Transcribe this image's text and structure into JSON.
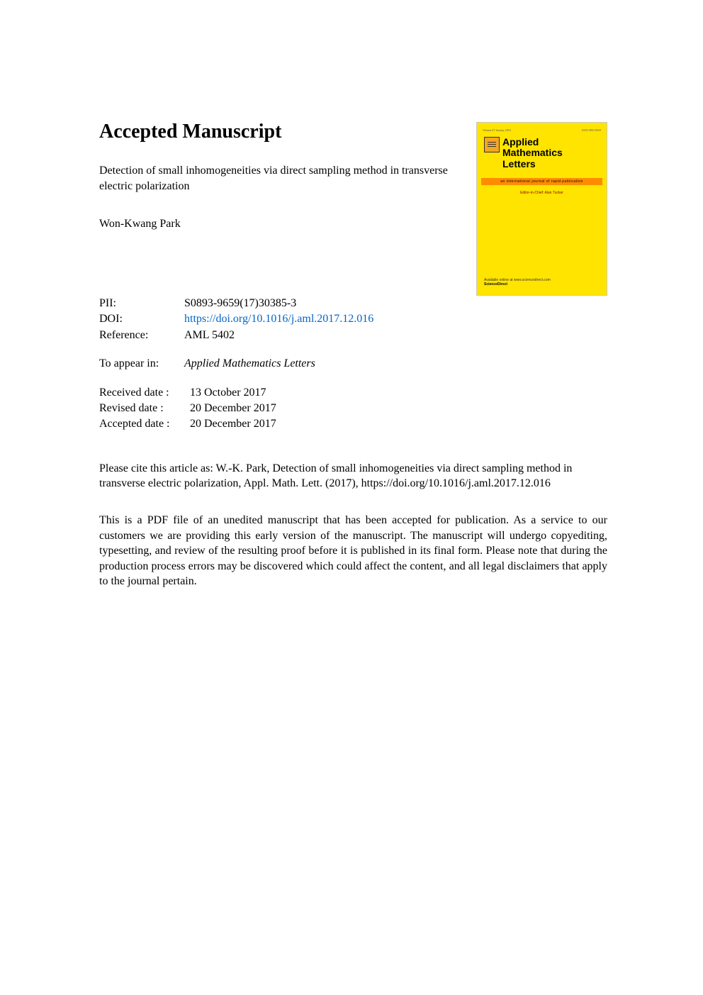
{
  "heading": "Accepted Manuscript",
  "title": "Detection of small inhomogeneities via direct sampling method in transverse electric polarization",
  "author": "Won-Kwang Park",
  "meta": {
    "pii_label": "PII:",
    "pii": "S0893-9659(17)30385-3",
    "doi_label": "DOI:",
    "doi": "https://doi.org/10.1016/j.aml.2017.12.016",
    "ref_label": "Reference:",
    "ref": "AML 5402",
    "appear_label": "To appear in:",
    "appear": "Applied Mathematics Letters",
    "received_label": "Received date :",
    "received": "13 October 2017",
    "revised_label": "Revised date :",
    "revised": "20 December 2017",
    "accepted_label": "Accepted date :",
    "accepted": "20 December 2017"
  },
  "citation": "Please cite this article as: W.-K. Park, Detection of small inhomogeneities via direct sampling method in transverse electric polarization, Appl. Math. Lett. (2017), https://doi.org/10.1016/j.aml.2017.12.016",
  "disclaimer": "This is a PDF file of an unedited manuscript that has been accepted for publication. As a service to our customers we are providing this early version of the manuscript. The manuscript will undergo copyediting, typesetting, and review of the resulting proof before it is published in its final form. Please note that during the production process errors may be discovered which could affect the content, and all legal disclaimers that apply to the journal pertain.",
  "cover": {
    "journal_line1": "Applied",
    "journal_line2": "Mathematics",
    "journal_line3": "Letters",
    "band": "an international journal of rapid publication",
    "editors": "Editor-in-Chief: Alan Tucker",
    "footer1": "Available online at www.sciencedirect.com",
    "footer2": "ScienceDirect",
    "top_left": "Volume 67  January 2018",
    "top_right": "ISSN 0893-9659",
    "colors": {
      "background": "#ffe400",
      "band": "#ff8c00",
      "border": "#c8c8c8",
      "editors_text": "#8b0000"
    }
  }
}
